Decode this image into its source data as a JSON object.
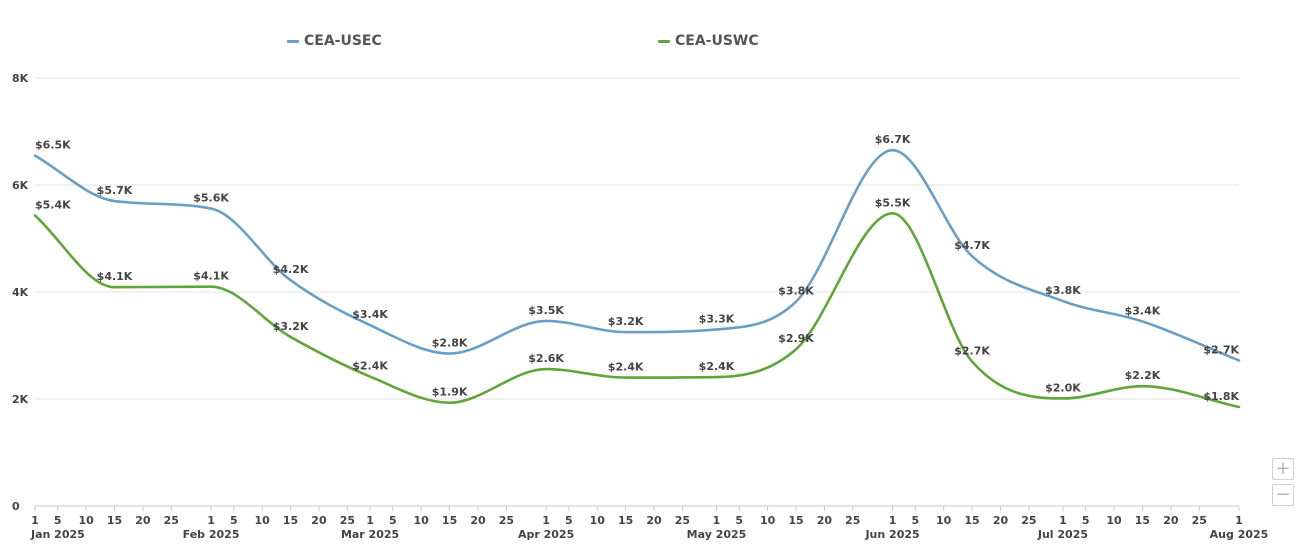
{
  "legend": {
    "items": [
      {
        "label": "CEA-USEC",
        "color": "#6a9ec4"
      },
      {
        "label": "CEA-USWC",
        "color": "#5ea63a"
      }
    ]
  },
  "zoom": {
    "in_label": "+",
    "out_label": "−"
  },
  "chart_data": {
    "type": "line",
    "title": "",
    "xlabel": "",
    "ylabel": "",
    "ylim": [
      0,
      8000
    ],
    "yticks": [
      {
        "value": 0,
        "label": "0"
      },
      {
        "value": 2000,
        "label": "2K"
      },
      {
        "value": 4000,
        "label": "4K"
      },
      {
        "value": 6000,
        "label": "6K"
      },
      {
        "value": 8000,
        "label": "8K"
      }
    ],
    "xrange": [
      "2025-01-01",
      "2025-08-01"
    ],
    "xtick_days": [
      "1",
      "5",
      "10",
      "15",
      "20",
      "25"
    ],
    "month_labels": [
      "Jan 2025",
      "Feb 2025",
      "Mar 2025",
      "Apr 2025",
      "May 2025",
      "Jun 2025",
      "Jul 2025",
      "Aug 2025"
    ],
    "grid": true,
    "legend_position": "top",
    "x": [
      "2025-01-01",
      "2025-01-15",
      "2025-02-01",
      "2025-02-15",
      "2025-03-01",
      "2025-03-15",
      "2025-04-01",
      "2025-04-15",
      "2025-05-01",
      "2025-05-15",
      "2025-06-01",
      "2025-06-15",
      "2025-07-01",
      "2025-07-15",
      "2025-08-01"
    ],
    "series": [
      {
        "name": "CEA-USEC",
        "color": "#6a9ec4",
        "values": [
          6550,
          5700,
          5560,
          4220,
          3380,
          2850,
          3460,
          3250,
          3300,
          3820,
          6650,
          4670,
          3830,
          3450,
          2720
        ],
        "labels": [
          "$6.5K",
          "$5.7K",
          "$5.6K",
          "$4.2K",
          "$3.4K",
          "$2.8K",
          "$3.5K",
          "$3.2K",
          "$3.3K",
          "$3.8K",
          "$6.7K",
          "$4.7K",
          "$3.8K",
          "$3.4K",
          "$2.7K"
        ]
      },
      {
        "name": "CEA-USWC",
        "color": "#5ea63a",
        "values": [
          5430,
          4090,
          4100,
          3160,
          2420,
          1930,
          2560,
          2400,
          2410,
          2930,
          5470,
          2700,
          2010,
          2240,
          1850
        ],
        "labels": [
          "$5.4K",
          "$4.1K",
          "$4.1K",
          "$3.2K",
          "$2.4K",
          "$1.9K",
          "$2.6K",
          "$2.4K",
          "$2.4K",
          "$2.9K",
          "$5.5K",
          "$2.7K",
          "$2.0K",
          "$2.2K",
          "$1.8K"
        ]
      }
    ]
  }
}
